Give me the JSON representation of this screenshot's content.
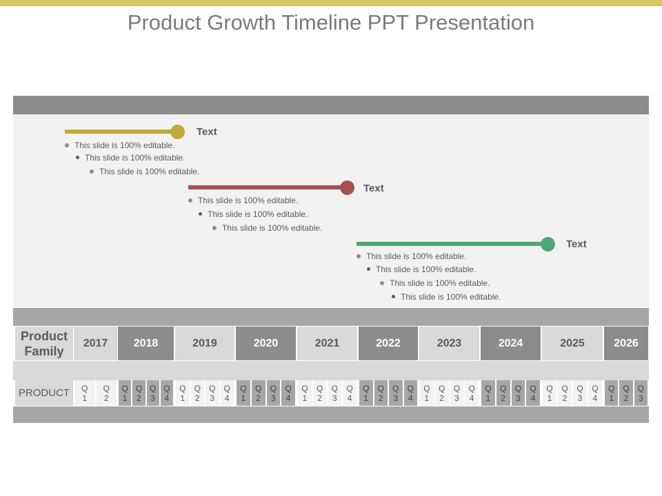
{
  "title": "Product Growth Timeline PPT Presentation",
  "colors": {
    "accent_bar": "#d4c866",
    "milestone_1": "#c0ab3a",
    "milestone_2": "#a5514f",
    "milestone_3": "#4fa478",
    "header_band": "#8c8c8c",
    "content_bg": "#f2f2f2"
  },
  "milestones": [
    {
      "label": "Text",
      "bullets": [
        "This slide is 100% editable.",
        "This slide is 100% editable.",
        "This slide is 100% editable."
      ]
    },
    {
      "label": "Text",
      "bullets": [
        "This slide is 100% editable.",
        "This slide is 100% editable.",
        "This slide is 100% editable."
      ]
    },
    {
      "label": "Text",
      "bullets": [
        "This slide is 100% editable.",
        "This slide is 100% editable.",
        "This slide is 100% editable.",
        "This slide is 100% editable."
      ]
    }
  ],
  "table": {
    "row_header": "Product Family",
    "years": [
      "2017",
      "2018",
      "2019",
      "2020",
      "2021",
      "2022",
      "2023",
      "2024",
      "2025",
      "2026"
    ],
    "product_label": "PRODUCT",
    "quarters": [
      [
        "Q 1",
        "Q 2"
      ],
      [
        "Q 1",
        "Q 2",
        "Q 3",
        "Q 4"
      ],
      [
        "Q 1",
        "Q 2",
        "Q 3",
        "Q 4"
      ],
      [
        "Q 1",
        "Q 2",
        "Q 3",
        "Q 4"
      ],
      [
        "Q 1",
        "Q 2",
        "Q 3",
        "Q 4"
      ],
      [
        "Q 1",
        "Q 2",
        "Q 3",
        "Q 4"
      ],
      [
        "Q 1",
        "Q 2",
        "Q 3",
        "Q 4"
      ],
      [
        "Q 1",
        "Q 2",
        "Q 3",
        "Q 4"
      ],
      [
        "Q 1",
        "Q 2",
        "Q 3",
        "Q 4"
      ],
      [
        "Q 1",
        "Q 2",
        "Q 3"
      ]
    ]
  }
}
